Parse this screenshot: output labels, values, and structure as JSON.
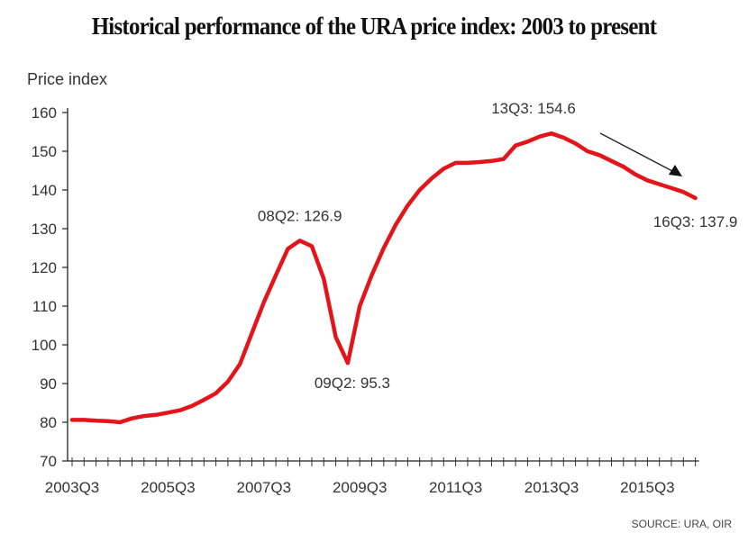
{
  "chart_data": {
    "type": "line",
    "title": "Historical performance of the URA price index: 2003 to present",
    "ylabel": "Price index",
    "xlabel": "",
    "ylim": [
      70,
      160
    ],
    "yticks": [
      70,
      80,
      90,
      100,
      110,
      120,
      130,
      140,
      150,
      160
    ],
    "xtick_labels": [
      "2003Q3",
      "2005Q3",
      "2007Q3",
      "2009Q3",
      "2011Q3",
      "2013Q3",
      "2015Q3"
    ],
    "x_start": "2003Q3",
    "x_end": "2016Q3",
    "grid": false,
    "line_color": "#e3151a",
    "series": [
      {
        "x": [
          "2003Q3",
          "2003Q4",
          "2004Q1",
          "2004Q2",
          "2004Q3",
          "2004Q4",
          "2005Q1",
          "2005Q2",
          "2005Q3",
          "2005Q4",
          "2006Q1",
          "2006Q2",
          "2006Q3",
          "2006Q4",
          "2007Q1",
          "2007Q2",
          "2007Q3",
          "2007Q4",
          "2008Q1",
          "2008Q2",
          "2008Q3",
          "2008Q4",
          "2009Q1",
          "2009Q2",
          "2009Q3",
          "2009Q4",
          "2010Q1",
          "2010Q2",
          "2010Q3",
          "2010Q4",
          "2011Q1",
          "2011Q2",
          "2011Q3",
          "2011Q4",
          "2012Q1",
          "2012Q2",
          "2012Q3",
          "2012Q4",
          "2013Q1",
          "2013Q2",
          "2013Q3",
          "2013Q4",
          "2014Q1",
          "2014Q2",
          "2014Q3",
          "2014Q4",
          "2015Q1",
          "2015Q2",
          "2015Q3",
          "2015Q4",
          "2016Q1",
          "2016Q2",
          "2016Q3"
        ],
        "values": [
          80.6,
          80.6,
          80.4,
          80.3,
          80.0,
          81.0,
          81.6,
          81.9,
          82.5,
          83.1,
          84.2,
          85.8,
          87.5,
          90.5,
          95.0,
          103.0,
          111.0,
          118.0,
          124.8,
          126.9,
          125.5,
          117.0,
          102.0,
          95.3,
          110.0,
          118.0,
          125.0,
          131.0,
          136.0,
          140.0,
          143.0,
          145.5,
          147.0,
          147.0,
          147.2,
          147.5,
          148.0,
          151.5,
          152.5,
          153.8,
          154.6,
          153.5,
          152.0,
          150.0,
          149.0,
          147.5,
          146.0,
          144.0,
          142.5,
          141.5,
          140.5,
          139.5,
          137.9
        ]
      }
    ],
    "annotations": [
      {
        "text": "08Q2: 126.9",
        "x": "2008Q2",
        "y": 126.9
      },
      {
        "text": "09Q2: 95.3",
        "x": "2009Q2",
        "y": 95.3
      },
      {
        "text": "13Q3: 154.6",
        "x": "2013Q3",
        "y": 154.6
      },
      {
        "text": "16Q3: 137.9",
        "x": "2016Q3",
        "y": 137.9
      }
    ],
    "source": "SOURCE: URA, OIR"
  }
}
